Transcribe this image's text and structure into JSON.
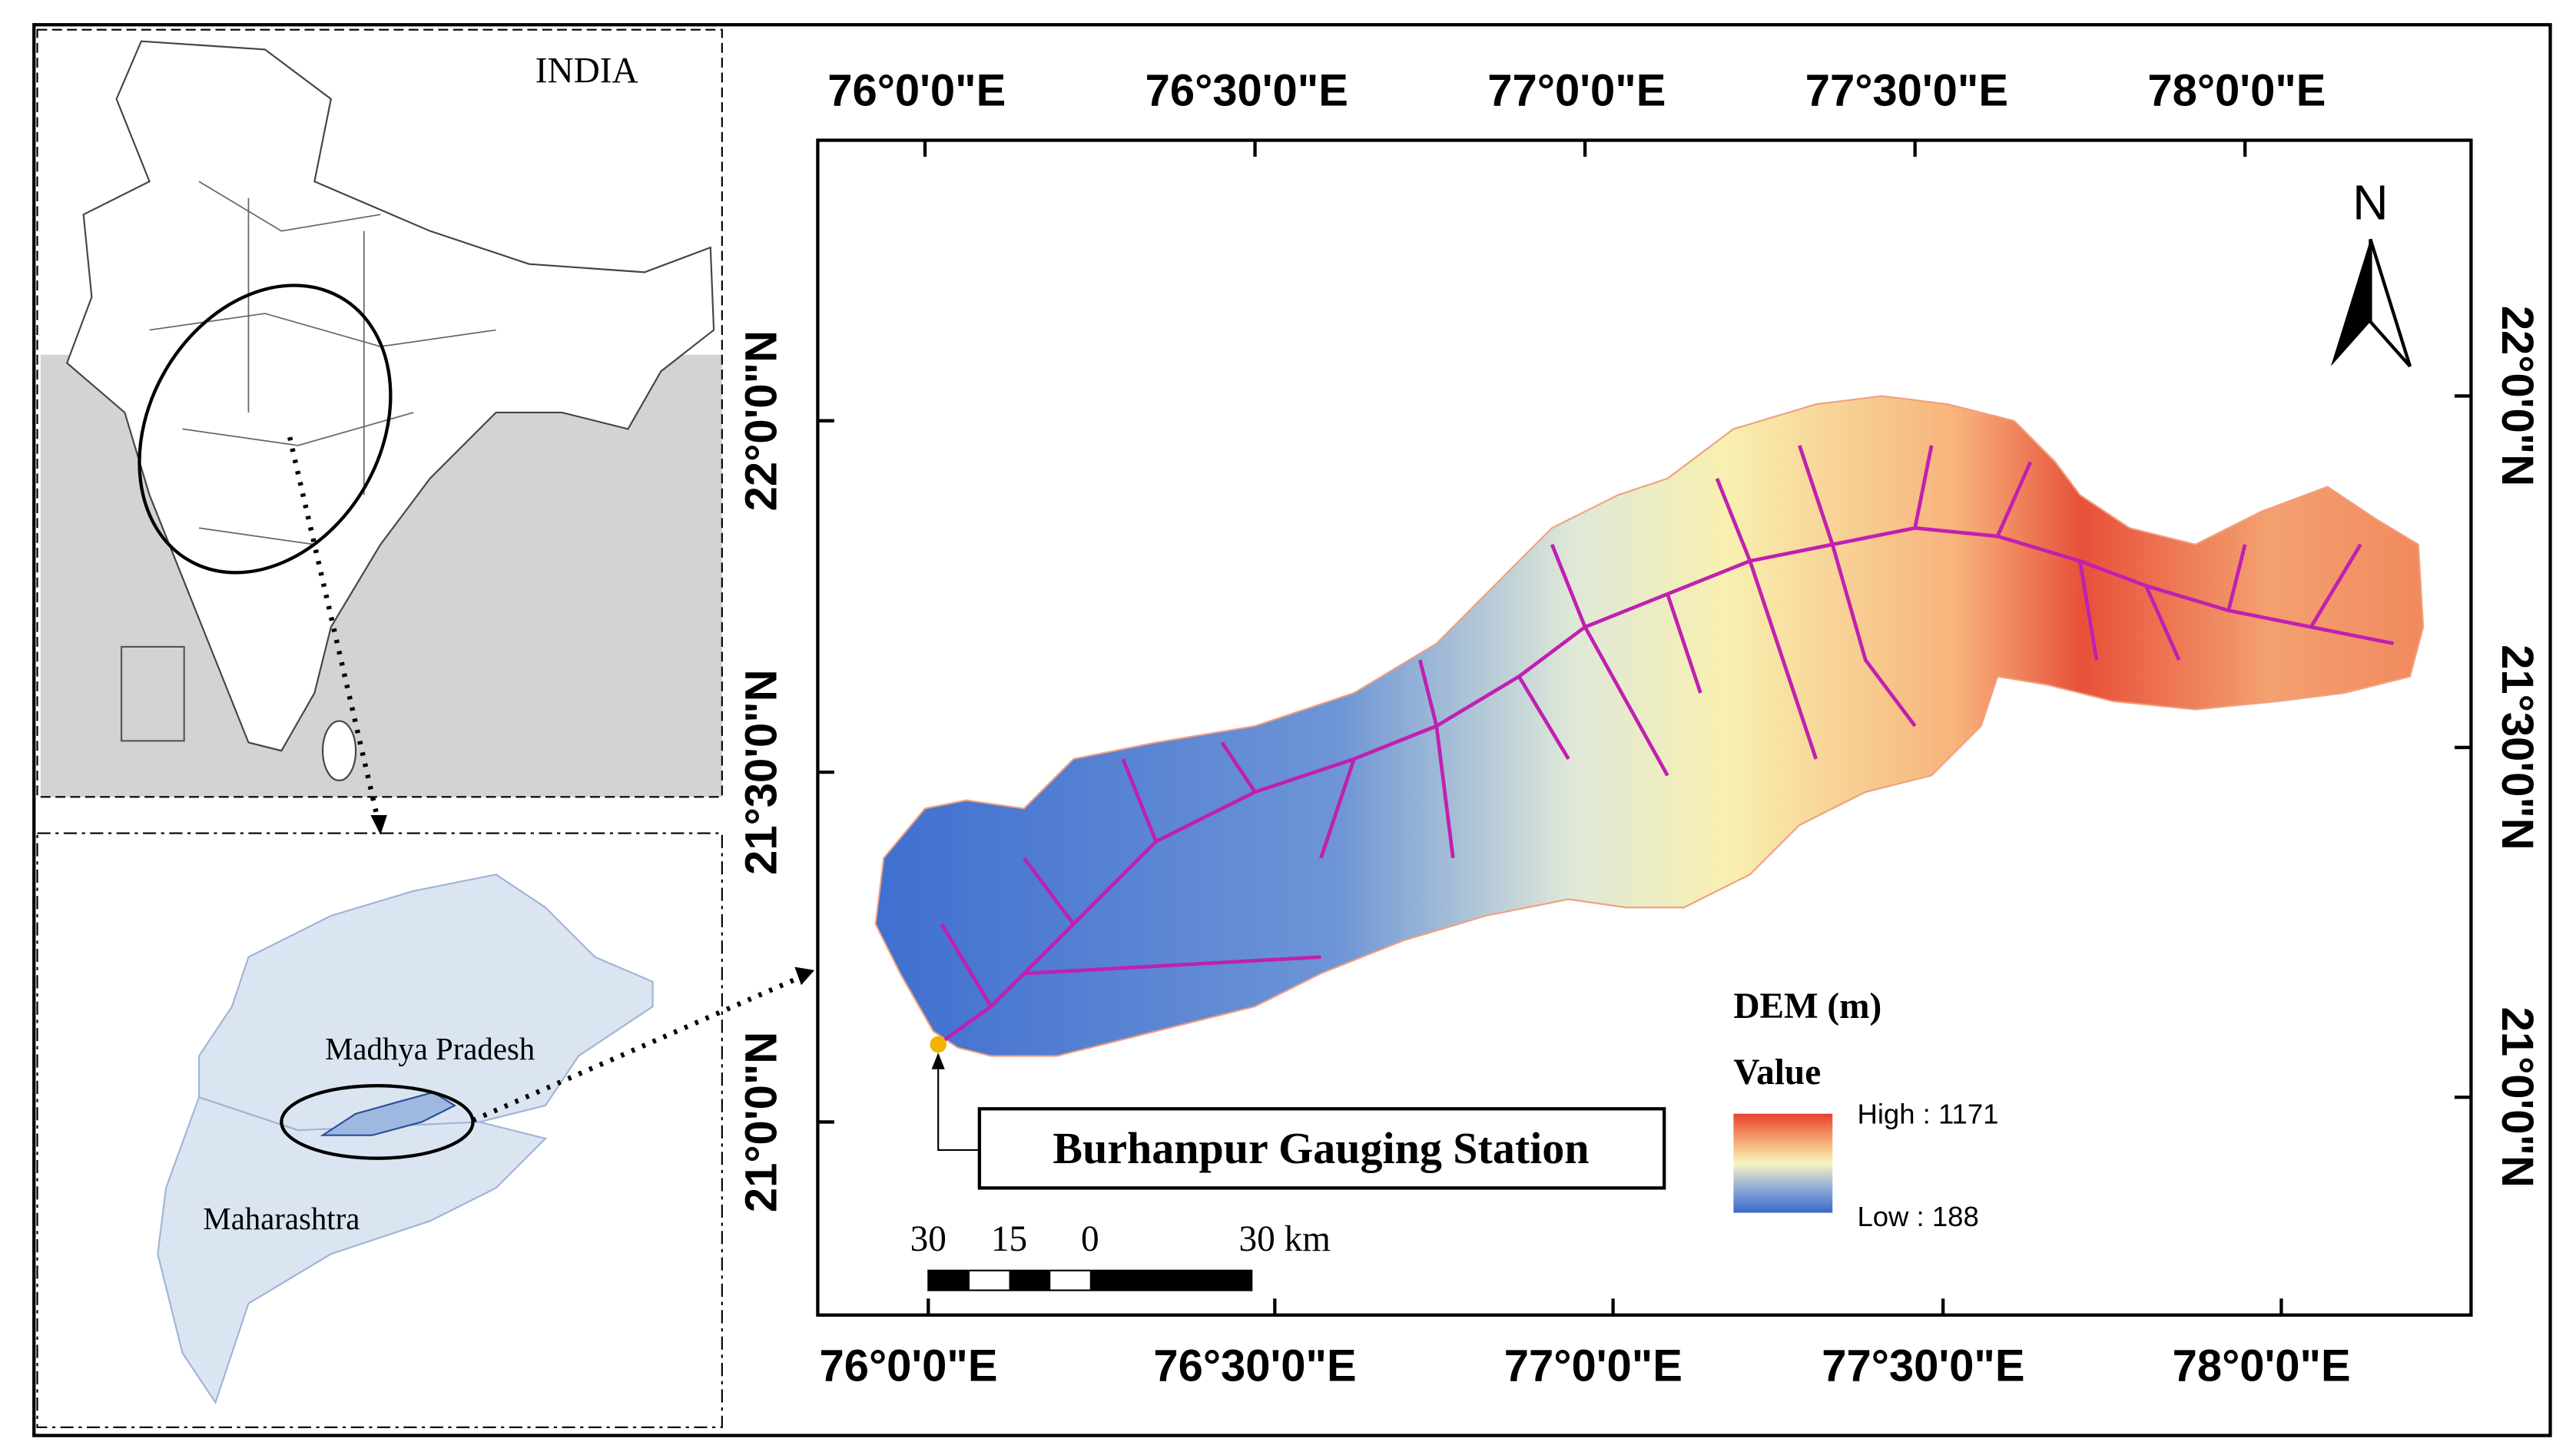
{
  "inset_india": {
    "title": "INDIA"
  },
  "inset_states": {
    "labels": [
      "Madhya Pradesh",
      "Maharashtra"
    ]
  },
  "map": {
    "longitude_top": [
      "76°0'0\"E",
      "76°30'0\"E",
      "77°0'0\"E",
      "77°30'0\"E",
      "78°0'0\"E"
    ],
    "longitude_bottom": [
      "76°0'0\"E",
      "76°30'0\"E",
      "77°0'0\"E",
      "77°30'0\"E",
      "78°0'0\"E"
    ],
    "latitude_left": [
      "22°0'0\"N",
      "21°30'0\"N",
      "21°0'0\"N"
    ],
    "latitude_right": [
      "22°0'0\"N",
      "21°30'0\"N",
      "21°0'0\"N"
    ],
    "north": "N",
    "legend": {
      "title": "DEM (m)",
      "subtitle": "Value",
      "high": "High : 1171",
      "low": "Low : 188"
    },
    "station": "Burhanpur Gauging Station",
    "scale_bar": [
      "30",
      "15",
      "0",
      "30 km"
    ]
  }
}
